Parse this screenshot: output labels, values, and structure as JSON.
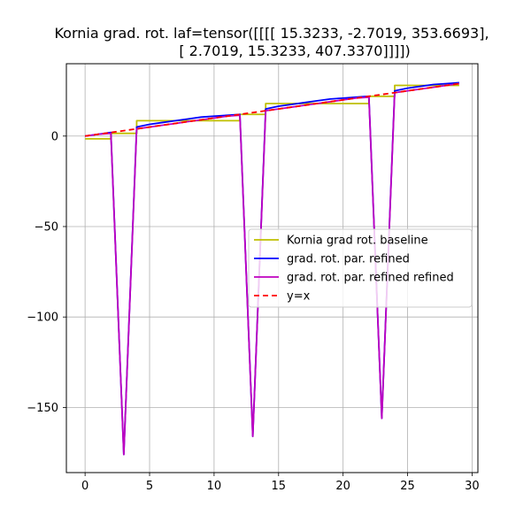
{
  "chart_data": {
    "type": "line",
    "title_lines": [
      "Kornia grad. rot. laf=tensor([[[[ 15.3233,  -2.7019, 353.6693],",
      "[  2.7019,  15.3233, 407.3370]]]])"
    ],
    "xlabel": "",
    "ylabel": "",
    "xlim": [
      -1.45,
      30.45
    ],
    "ylim": [
      -186,
      40
    ],
    "xticks": [
      0,
      5,
      10,
      15,
      20,
      25,
      30
    ],
    "yticks": [
      0,
      -50,
      -100,
      -150
    ],
    "ytick_labels": [
      "0",
      "−50",
      "−100",
      "−150"
    ],
    "grid": true,
    "legend_position": "center-right",
    "series": [
      {
        "name": "Kornia grad rot. baseline",
        "color": "#bfbf00",
        "dash": "",
        "step": true,
        "x": [
          0,
          2,
          2,
          4,
          4,
          12,
          12,
          14,
          14,
          22,
          22,
          24,
          24,
          29
        ],
        "y": [
          -1.5,
          -1.5,
          1.5,
          1.5,
          8.5,
          8.5,
          12,
          12,
          18,
          18,
          22,
          22,
          28,
          28
        ]
      },
      {
        "name": "grad. rot. par. refined",
        "color": "#0000ff",
        "dash": "",
        "step": false,
        "x": [
          0,
          1,
          2,
          3,
          4,
          5,
          6,
          7,
          8,
          9,
          10,
          11,
          12,
          13,
          14,
          15,
          16,
          17,
          18,
          19,
          20,
          21,
          22,
          23,
          24,
          25,
          26,
          27,
          28,
          29
        ],
        "y": [
          0,
          1,
          2,
          -176,
          5,
          6.5,
          7.5,
          8.5,
          9.5,
          10.5,
          11,
          11.5,
          12,
          -166,
          15,
          16.5,
          17.5,
          18.5,
          19.5,
          20.5,
          21,
          21.5,
          22,
          -156,
          25,
          26.5,
          27.5,
          28.5,
          29,
          29.5
        ]
      },
      {
        "name": "grad. rot. par. refined refined",
        "color": "#bf00bf",
        "dash": "",
        "step": false,
        "x": [
          0,
          1,
          2,
          3,
          4,
          5,
          6,
          7,
          8,
          9,
          10,
          11,
          12,
          13,
          14,
          15,
          16,
          17,
          18,
          19,
          20,
          21,
          22,
          23,
          24,
          25,
          26,
          27,
          28,
          29
        ],
        "y": [
          0,
          1,
          1.5,
          -176,
          4,
          5,
          6,
          7,
          8,
          9,
          10,
          11,
          11.5,
          -166,
          14,
          15,
          16,
          17,
          18,
          19,
          20,
          21,
          21.5,
          -156,
          24,
          25,
          26,
          27,
          28,
          29
        ]
      },
      {
        "name": "y=x",
        "color": "#ff0000",
        "dash": "6,4",
        "step": false,
        "x": [
          0,
          29
        ],
        "y": [
          0,
          29
        ]
      }
    ]
  }
}
